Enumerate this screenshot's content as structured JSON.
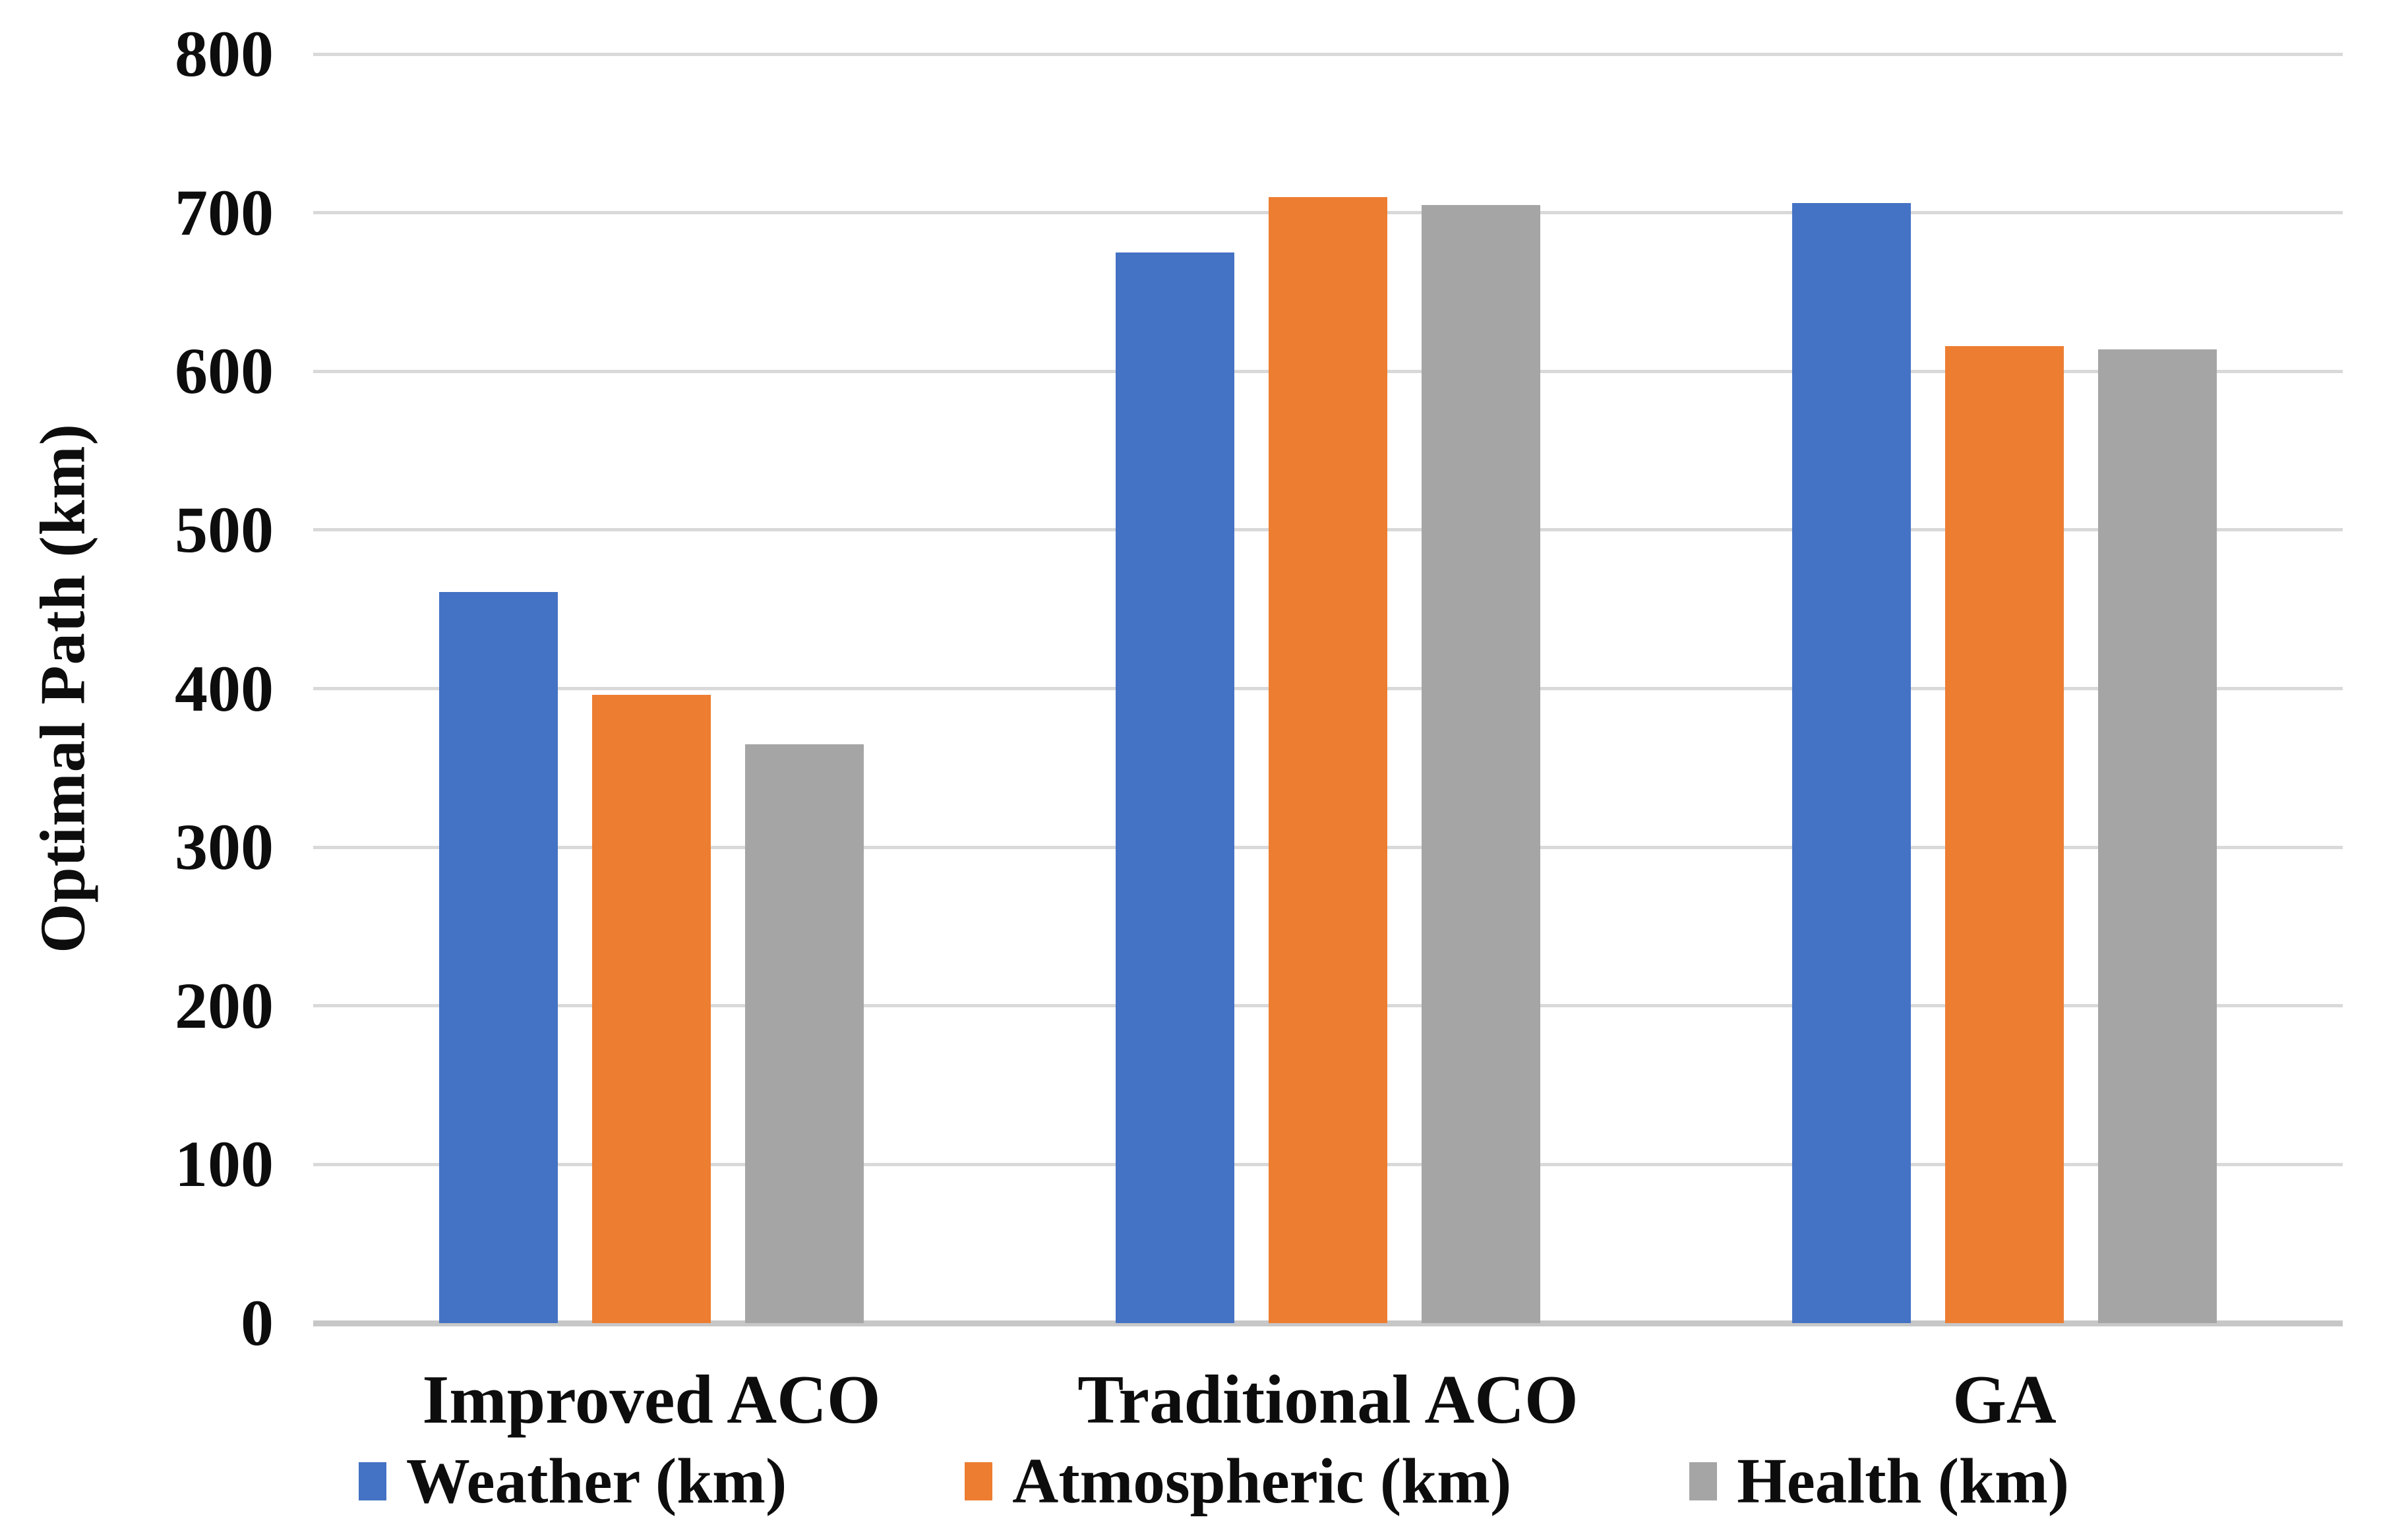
{
  "figure": {
    "background": "#ffffff",
    "text_color": "#0d0d0d"
  },
  "chart_data": {
    "type": "bar",
    "title": "",
    "xlabel": "",
    "ylabel": "Optimal Path (km)",
    "ylim": [
      0,
      800
    ],
    "ytick_step": 100,
    "ytick_labels": [
      "800",
      "700",
      "600",
      "500",
      "400",
      "300",
      "200",
      "100",
      "0"
    ],
    "categories": [
      "Improved ACO",
      "Traditional ACO",
      "GA"
    ],
    "series": [
      {
        "name": "Weather (km)",
        "color": "#4472C4",
        "values": [
          461,
          675,
          706
        ]
      },
      {
        "name": "Atmospheric (km)",
        "color": "#ED7D31",
        "values": [
          396,
          710,
          616
        ]
      },
      {
        "name": "Health (km)",
        "color": "#A5A5A5",
        "values": [
          365,
          705,
          614
        ]
      }
    ],
    "legend_position": "bottom",
    "grid": true,
    "gridline_color": "#d9d9d9",
    "baseline_color": "#c7c7c7"
  }
}
